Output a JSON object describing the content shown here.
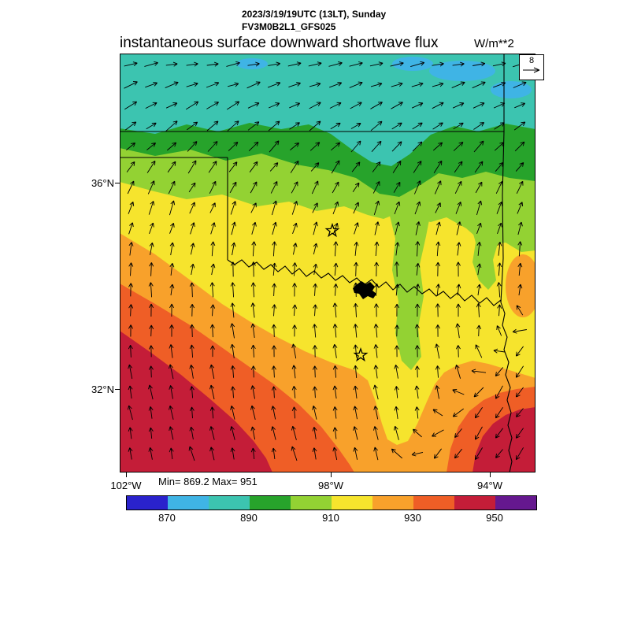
{
  "header": {
    "datetime": "2023/3/19/19UTC (13LT), Sunday",
    "model": "FV3M0B2L1_GFS025"
  },
  "chart_data": {
    "type": "heatmap",
    "title": "instantaneous surface downward shortwave flux",
    "units": "W/m**2",
    "stats_label": "Min= 869.2 Max= 951",
    "min": 869.2,
    "max": 951,
    "x_ticks": [
      "102°W",
      "98°W",
      "94°W"
    ],
    "y_ticks": [
      "36°N",
      "32°N"
    ],
    "colorbar": {
      "levels": [
        860,
        870,
        880,
        890,
        900,
        910,
        920,
        930,
        940,
        950,
        960
      ],
      "colors": [
        "#2a22cc",
        "#3fb4e5",
        "#3cc4b0",
        "#27a32b",
        "#93d233",
        "#f6e42d",
        "#f8a12b",
        "#ef5e26",
        "#c41d38",
        "#65188f"
      ],
      "tick_labels": [
        "870",
        "890",
        "910",
        "930",
        "950"
      ],
      "tick_boundaries": [
        1,
        3,
        5,
        7,
        9
      ]
    },
    "wind_key": {
      "value": "8"
    },
    "field_summary": {
      "gradient": "downward shortwave flux increases from northeast (~875 W/m**2, teal) to southwest (~950 W/m**2, crimson)",
      "bands_north_to_south": [
        {
          "value_range": "870-890",
          "location": "northern strip (light blue / teal)"
        },
        {
          "value_range": "890-910",
          "location": "north-central (green and yellow-green), with yellow-green tongues extending south in center-right"
        },
        {
          "value_range": "910-920",
          "location": "broad central area (yellow)"
        },
        {
          "value_range": "920-940",
          "location": "south-central diagonal band (orange to red-orange)"
        },
        {
          "value_range": "940-951",
          "location": "southwest corner and far southeast (crimson)"
        }
      ],
      "wind": "arrows blow eastward in the north, veer to southerly in the center, and turn southwestward in the far southeast"
    },
    "markers": {
      "stars": [
        {
          "x": 422,
          "y": 293
        },
        {
          "x": 458,
          "y": 451
        }
      ],
      "lake": {
        "x": 460,
        "y": 370
      }
    }
  }
}
